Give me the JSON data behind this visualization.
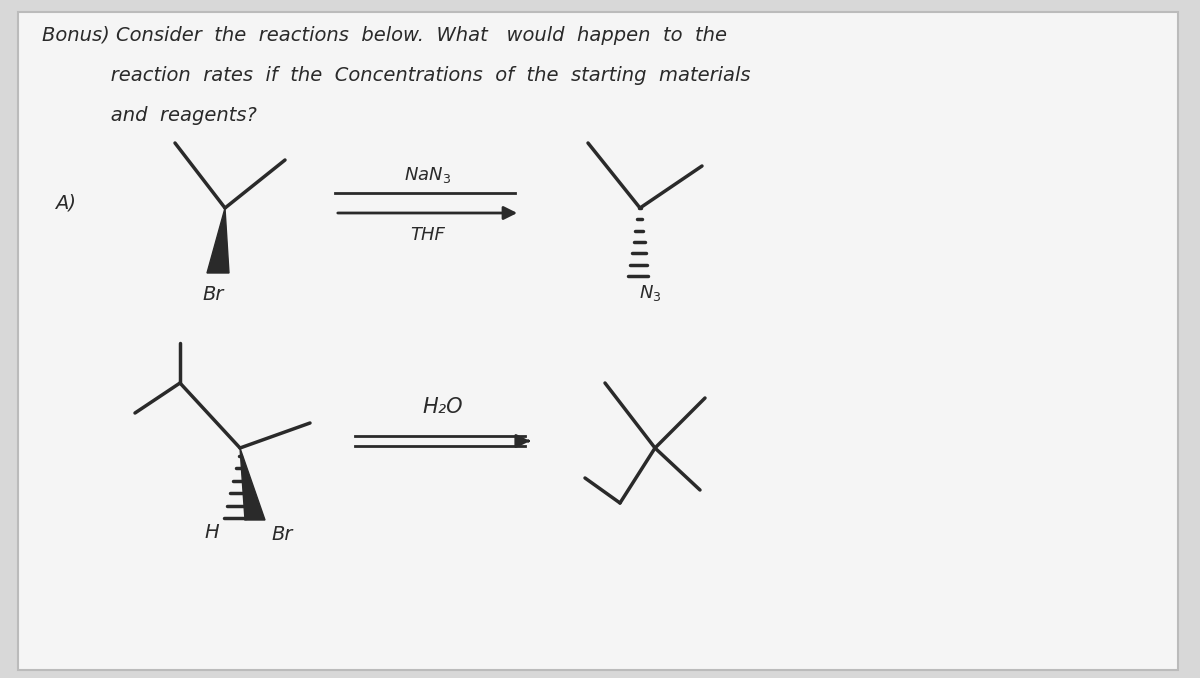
{
  "bg_color": "#d8d8d8",
  "panel_color": "#f5f5f5",
  "ink_color": "#2a2a2a",
  "fig_width": 12.0,
  "fig_height": 6.78,
  "dpi": 100,
  "title_line1": "Bonus) Consider  the  reactions  below.  What   would  happen  to  the",
  "title_line2": "           reaction  rates  if  the  Concentrations  of  the  starting  materials",
  "title_line3": "           and  reagents?",
  "label_A": "A)",
  "reagent_A1": "NaN",
  "reagent_A2": "THF",
  "reagent_B": "H₂O"
}
